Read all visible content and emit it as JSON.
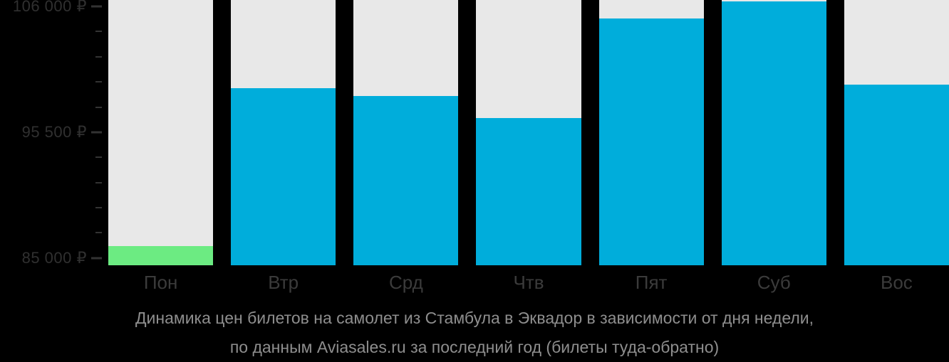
{
  "chart_data": {
    "type": "bar",
    "title": "Динамика цен билетов на самолет из Стамбула в Эквадор в зависимости от дня недели, по данным Aviasales.ru за последний год (билеты туда-обратно)",
    "title_line1": "Динамика цен билетов на самолет из Стамбула в Эквадор в зависимости от дня недели,",
    "title_line2": "по данным Aviasales.ru за последний год (билеты туда-обратно)",
    "categories": [
      "Пон",
      "Втр",
      "Срд",
      "Чтв",
      "Пят",
      "Суб",
      "Вос"
    ],
    "category_keys": [
      "mon",
      "tue",
      "wed",
      "thu",
      "fri",
      "sat",
      "sun"
    ],
    "values": [
      86000,
      99200,
      98500,
      96700,
      105000,
      106400,
      99500
    ],
    "bar_colors": [
      "#6CEB82",
      "#00ADDB",
      "#00ADDB",
      "#00ADDB",
      "#00ADDB",
      "#00ADDB",
      "#00ADDB"
    ],
    "currency": "₽",
    "xlabel": "",
    "ylabel": "",
    "ylim": [
      84400,
      106530
    ],
    "y_major_ticks": [
      {
        "value": 106000,
        "label": "106 000 ₽"
      },
      {
        "value": 95500,
        "label": "95 500 ₽"
      },
      {
        "value": 85000,
        "label": "85 000 ₽"
      }
    ],
    "y_minor_step": 2100,
    "y_minor_range": [
      85000,
      106000
    ],
    "grid": false,
    "legend": false
  },
  "colors": {
    "background": "#000000",
    "column_background": "#E8E8E8",
    "bar_blue": "#00ADDB",
    "bar_green": "#6CEB82",
    "axis_label": "#303030",
    "tick": "#333333",
    "category_label": "#3B3B3B",
    "title": "#8E8E8E"
  }
}
